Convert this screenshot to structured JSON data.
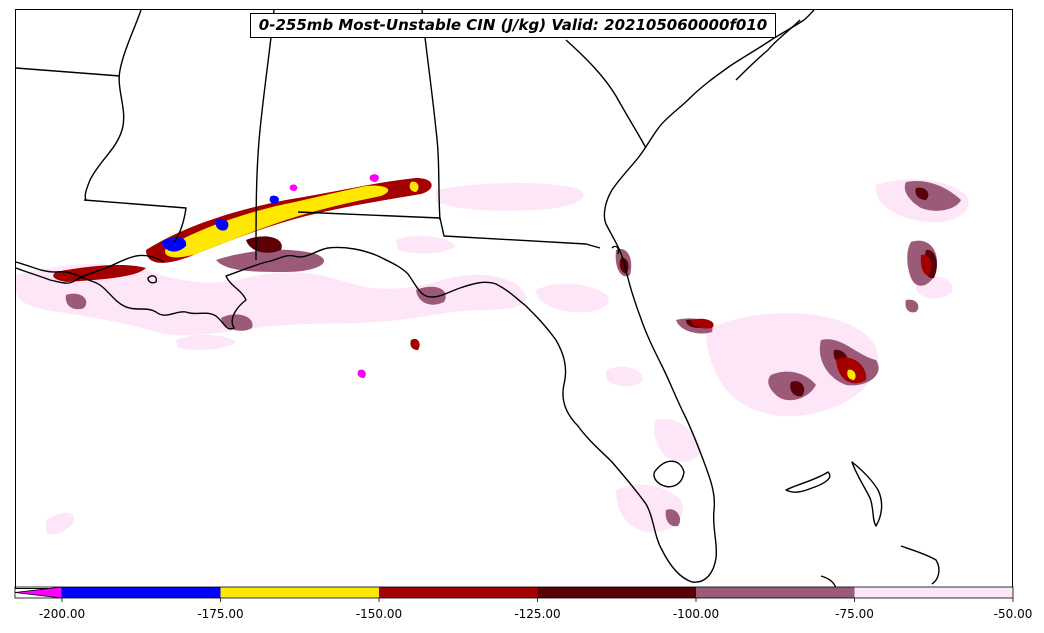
{
  "title": "0-255mb Most-Unstable CIN (J/kg) Valid: 202105060000f010",
  "colorbar": {
    "min": -200,
    "max": -50,
    "extend": "min",
    "extend_color": "#ff00ff",
    "bands": [
      {
        "from": -200,
        "to": -175,
        "color": "#0000ff"
      },
      {
        "from": -175,
        "to": -150,
        "color": "#ffe800"
      },
      {
        "from": -150,
        "to": -125,
        "color": "#a50000"
      },
      {
        "from": -125,
        "to": -100,
        "color": "#5c0008"
      },
      {
        "from": -100,
        "to": -75,
        "color": "#9b5b78"
      },
      {
        "from": -75,
        "to": -50,
        "color": "#fde6f8"
      }
    ],
    "tick_labels": [
      "-200.00",
      "-175.00",
      "-150.00",
      "-125.00",
      "-100.00",
      "-75.00",
      "-50.00"
    ]
  },
  "colors": {
    "coastline": "#000000",
    "background": "#ffffff"
  }
}
